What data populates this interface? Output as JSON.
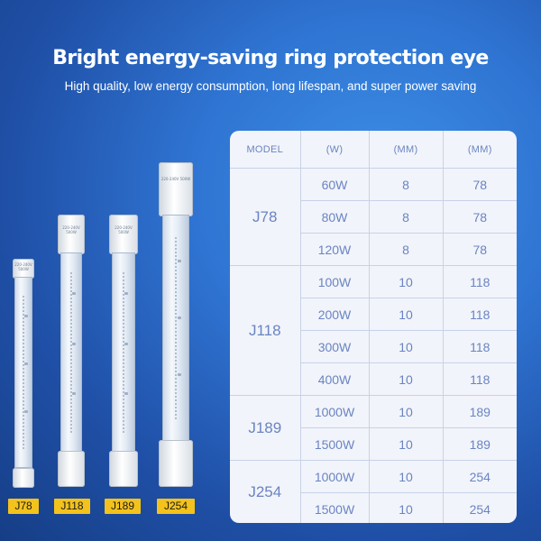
{
  "header": {
    "title": "Bright energy-saving ring protection eye",
    "subtitle": "High quality, low energy consumption, long lifespan, and super power saving"
  },
  "table": {
    "headers": [
      "MODEL",
      "(W)",
      "(MM)",
      "(MM)"
    ],
    "groups": [
      {
        "model": "J78",
        "rows": [
          [
            "60W",
            "8",
            "78"
          ],
          [
            "80W",
            "8",
            "78"
          ],
          [
            "120W",
            "8",
            "78"
          ]
        ]
      },
      {
        "model": "J118",
        "rows": [
          [
            "100W",
            "10",
            "118"
          ],
          [
            "200W",
            "10",
            "118"
          ],
          [
            "300W",
            "10",
            "118"
          ],
          [
            "400W",
            "10",
            "118"
          ]
        ]
      },
      {
        "model": "J189",
        "rows": [
          [
            "1000W",
            "10",
            "189"
          ],
          [
            "1500W",
            "10",
            "189"
          ]
        ]
      },
      {
        "model": "J254",
        "rows": [
          [
            "1000W",
            "10",
            "254"
          ],
          [
            "1500W",
            "10",
            "254"
          ]
        ]
      }
    ]
  },
  "bulbs": {
    "labels": [
      "J78",
      "J118",
      "J189",
      "J254"
    ],
    "print_text": "220-240V 500W"
  },
  "colors": {
    "background": "#2f74d2",
    "panel": "#f1f4fa",
    "table_text": "#6a84c2",
    "tag": "#f3c21c"
  }
}
